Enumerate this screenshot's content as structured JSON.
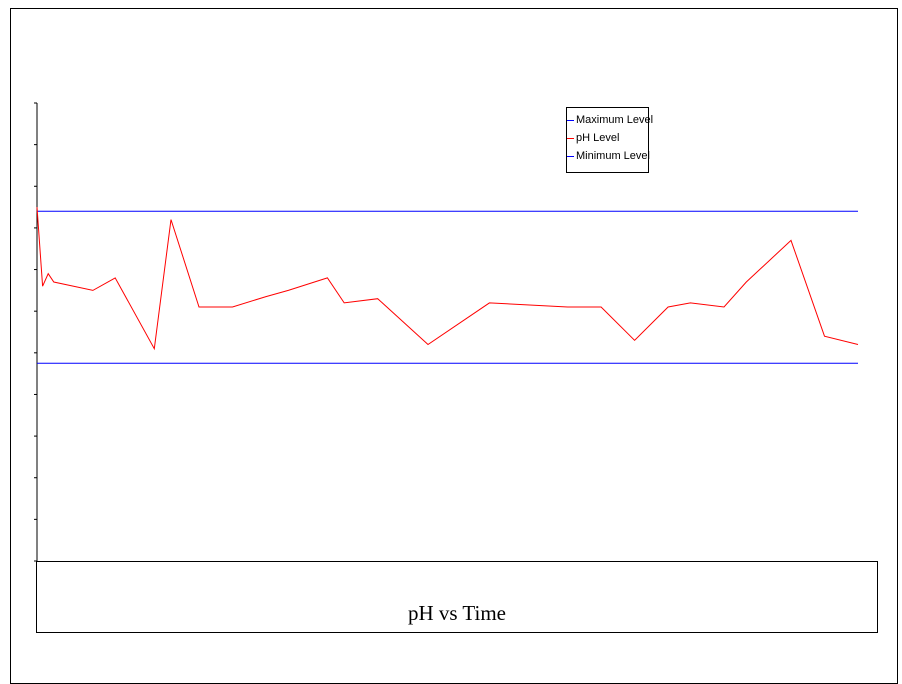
{
  "chart_data": {
    "type": "line",
    "title": "pH vs Time",
    "xlabel": "",
    "ylabel": "",
    "legend_position": "top-right",
    "grid": false,
    "xlim": [
      0,
      147
    ],
    "ylim": [
      0,
      11
    ],
    "series": [
      {
        "name": "Maximum Level",
        "color": "#0000ff",
        "x": [
          0,
          147
        ],
        "y": [
          8.4,
          8.4
        ]
      },
      {
        "name": "pH Level",
        "color": "#ff0000",
        "x": [
          0,
          1,
          2,
          3,
          10,
          14,
          21,
          24,
          29,
          35,
          41,
          45,
          52,
          55,
          61,
          70,
          81,
          95,
          101,
          107,
          113,
          117,
          123,
          127,
          135,
          141,
          147
        ],
        "y": [
          8.5,
          6.6,
          6.9,
          6.7,
          6.5,
          6.8,
          5.1,
          8.2,
          6.1,
          6.1,
          6.35,
          6.5,
          6.8,
          6.2,
          6.3,
          5.2,
          6.2,
          6.1,
          6.1,
          5.3,
          6.1,
          6.2,
          6.1,
          6.7,
          7.7,
          5.4,
          5.2
        ]
      },
      {
        "name": "Minimum Level",
        "color": "#0000ff",
        "x": [
          0,
          147
        ],
        "y": [
          4.75,
          4.75
        ]
      }
    ]
  }
}
